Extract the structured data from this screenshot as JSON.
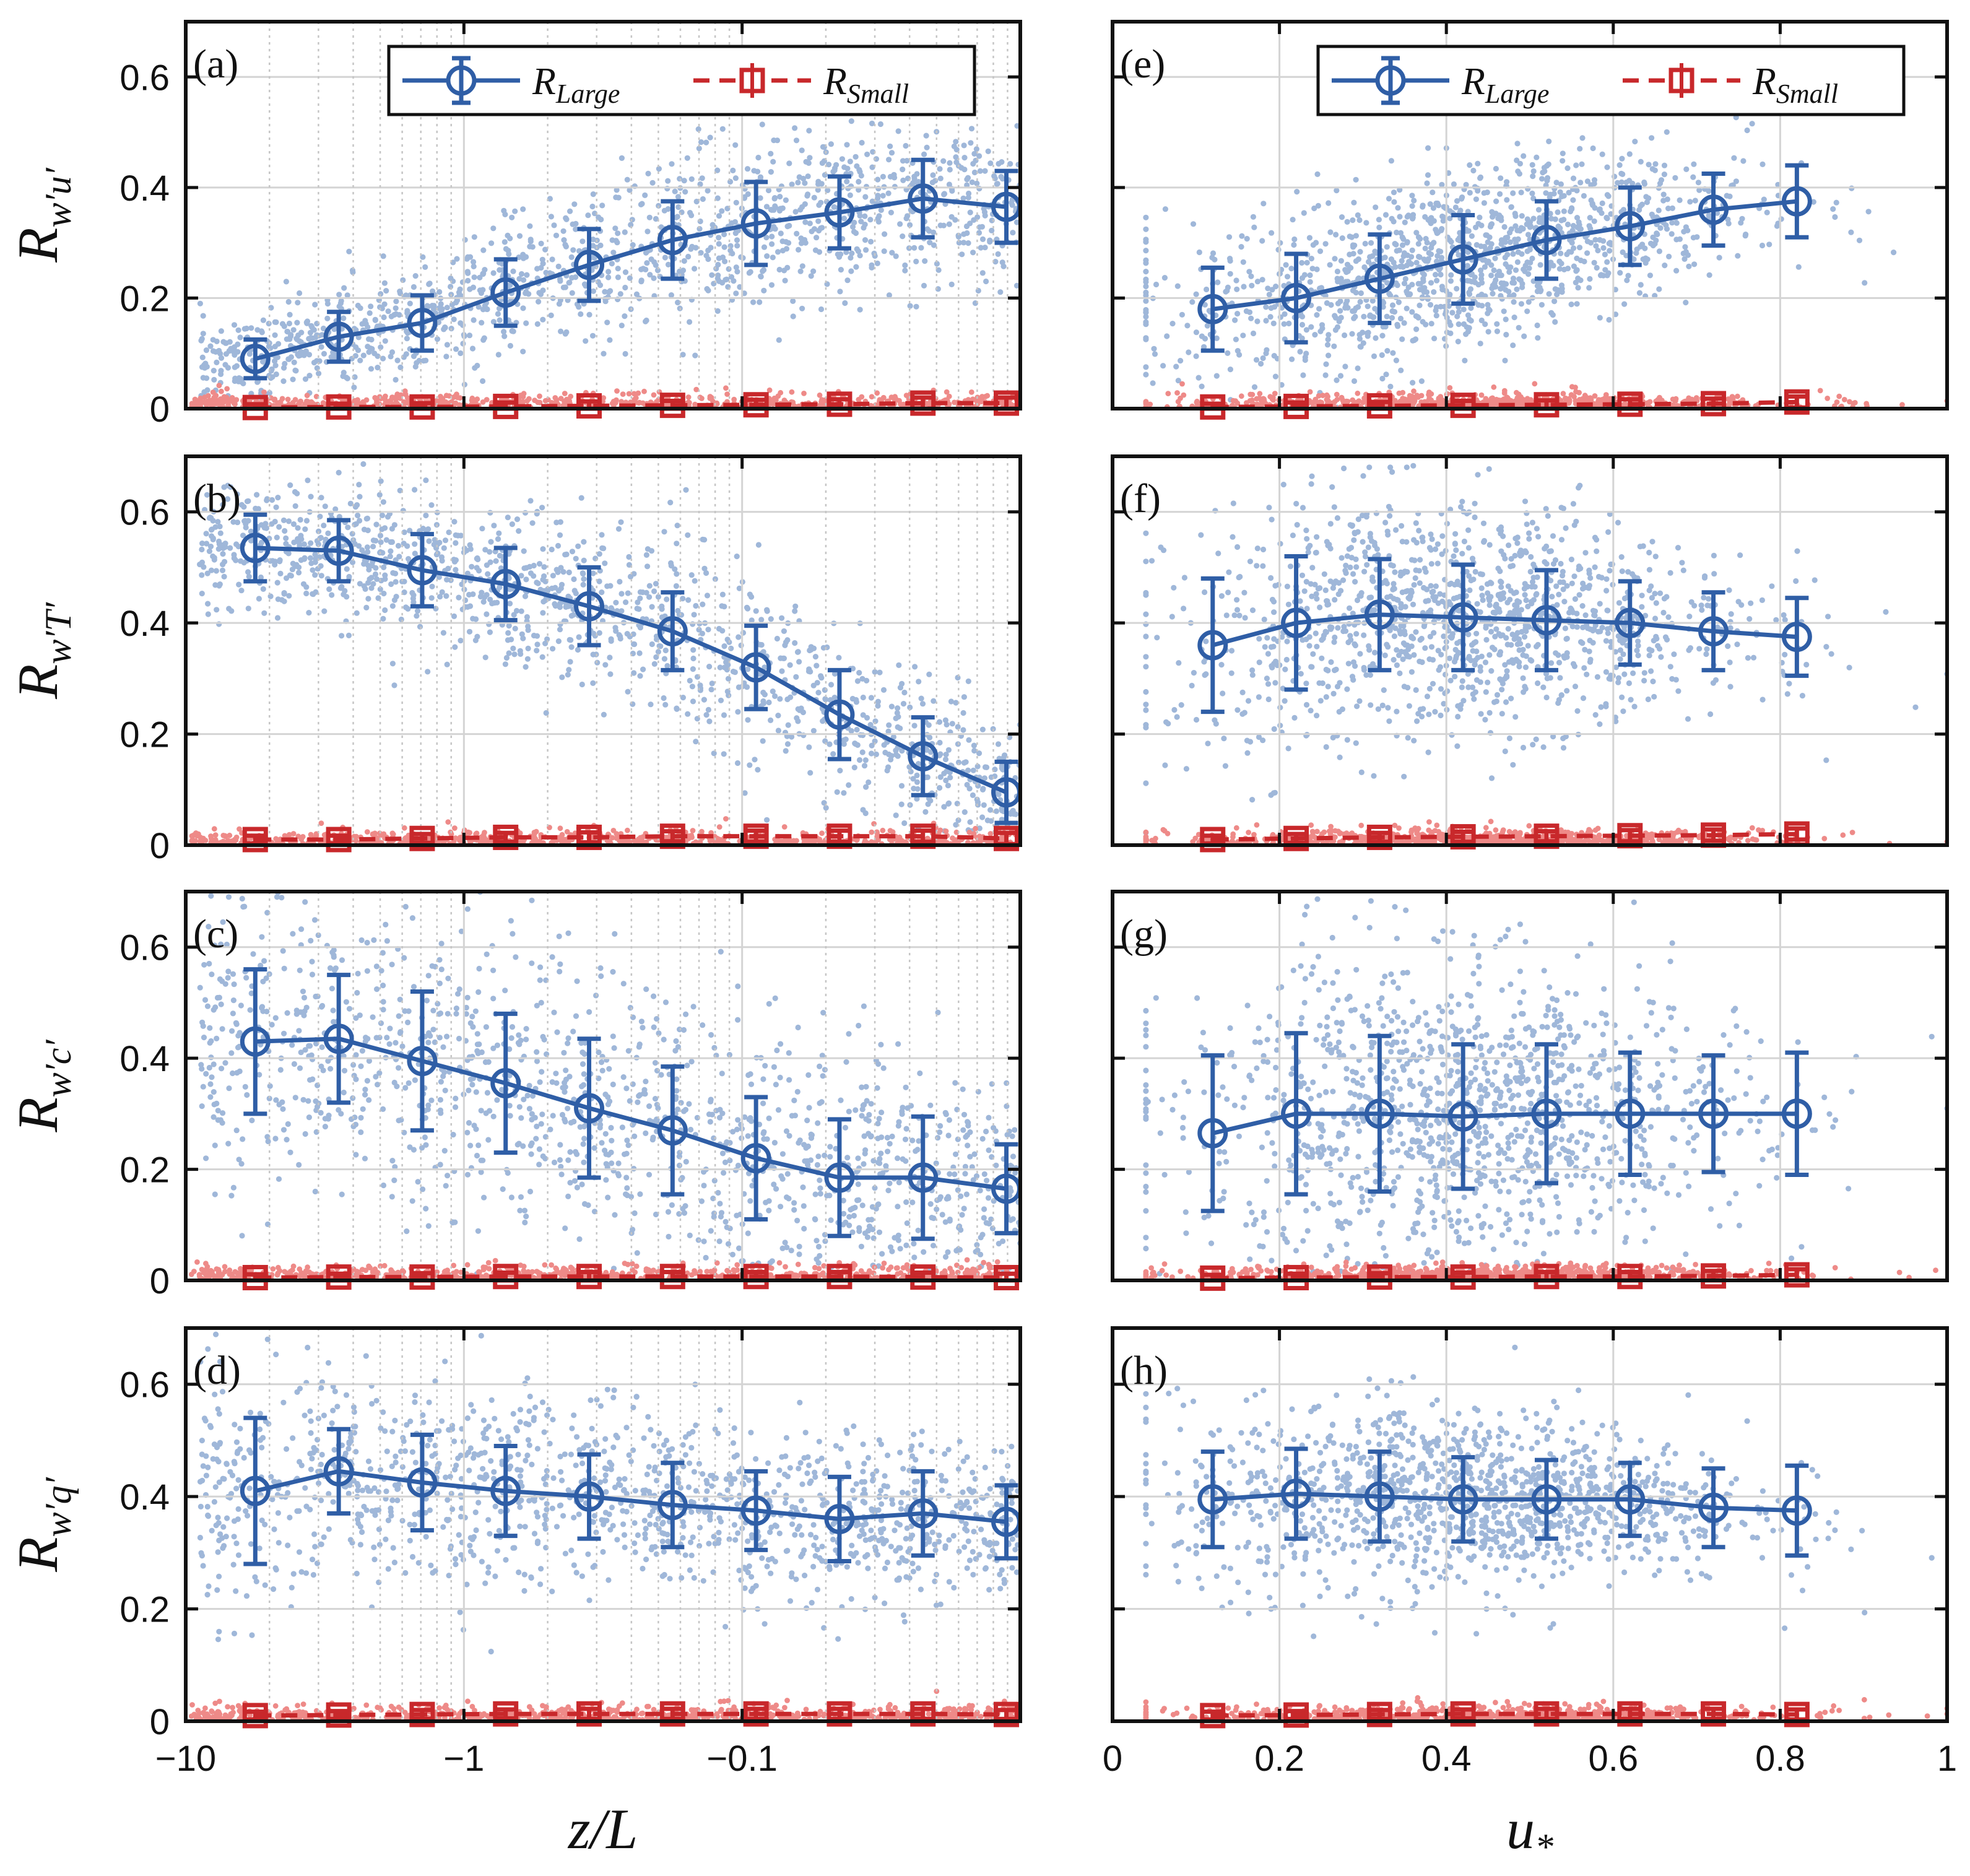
{
  "colors": {
    "large": "#2f5ea6",
    "small": "#c8282b",
    "large_scatter": "#9fb7d9",
    "small_scatter": "#ee8a88",
    "grid": "#d4d4d4",
    "axis": "#111111"
  },
  "legend": {
    "large_label": "R_Large",
    "small_label": "R_Small",
    "large_main": "R",
    "large_sub": "Large",
    "small_main": "R",
    "small_sub": "Small"
  },
  "x_axes": {
    "left": {
      "label": "z/L",
      "label_main": "z/L",
      "scale": "log-negative",
      "tick_labels": [
        "−10",
        "−1",
        "−0.1"
      ]
    },
    "right": {
      "label": "u*",
      "label_main": "u",
      "label_sub": "*",
      "scale": "linear",
      "range": [
        0,
        1
      ],
      "tick_labels": [
        "0",
        "0.2",
        "0.4",
        "0.6",
        "0.8",
        "1"
      ]
    }
  },
  "y_axis_tick_labels": [
    "0",
    "0.2",
    "0.4",
    "0.6"
  ],
  "chart_data": [
    {
      "type": "scatter",
      "panel": "(a)",
      "ylabel": "R_w'u'",
      "ylabel_sub": "w′u′",
      "xlabel": "z/L",
      "ylim": [
        0,
        0.7
      ],
      "legend": true,
      "series": [
        {
          "name": "R_Large",
          "x_decades": [
            -1.75,
            -1.45,
            -1.15,
            -0.85,
            -0.55,
            -0.25,
            0.05,
            0.35,
            0.65,
            0.95
          ],
          "values": [
            0.09,
            0.13,
            0.155,
            0.21,
            0.26,
            0.305,
            0.335,
            0.355,
            0.38,
            0.365
          ],
          "err": [
            0.035,
            0.045,
            0.05,
            0.06,
            0.065,
            0.07,
            0.075,
            0.065,
            0.07,
            0.065
          ]
        },
        {
          "name": "R_Small",
          "x_decades": [
            -1.75,
            -1.45,
            -1.15,
            -0.85,
            -0.55,
            -0.25,
            0.05,
            0.35,
            0.65,
            0.95
          ],
          "values": [
            0.002,
            0.003,
            0.003,
            0.004,
            0.005,
            0.006,
            0.007,
            0.008,
            0.01,
            0.01
          ],
          "err": [
            0.006,
            0.006,
            0.007,
            0.007,
            0.008,
            0.008,
            0.009,
            0.009,
            0.01,
            0.01
          ]
        }
      ]
    },
    {
      "type": "scatter",
      "panel": "(b)",
      "ylabel": "R_w'T'",
      "ylabel_sub": "w′T′",
      "xlabel": "z/L",
      "ylim": [
        0,
        0.7
      ],
      "legend": false,
      "series": [
        {
          "name": "R_Large",
          "x_decades": [
            -1.75,
            -1.45,
            -1.15,
            -0.85,
            -0.55,
            -0.25,
            0.05,
            0.35,
            0.65,
            0.95
          ],
          "values": [
            0.535,
            0.53,
            0.495,
            0.47,
            0.43,
            0.385,
            0.32,
            0.235,
            0.16,
            0.095
          ],
          "err": [
            0.06,
            0.055,
            0.065,
            0.065,
            0.07,
            0.07,
            0.075,
            0.08,
            0.07,
            0.055
          ]
        },
        {
          "name": "R_Small",
          "x_decades": [
            -1.75,
            -1.45,
            -1.15,
            -0.85,
            -0.55,
            -0.25,
            0.05,
            0.35,
            0.65,
            0.95
          ],
          "values": [
            0.01,
            0.01,
            0.012,
            0.014,
            0.014,
            0.016,
            0.016,
            0.016,
            0.016,
            0.012
          ],
          "err": [
            0.007,
            0.007,
            0.008,
            0.008,
            0.009,
            0.009,
            0.01,
            0.01,
            0.01,
            0.01
          ]
        }
      ]
    },
    {
      "type": "scatter",
      "panel": "(c)",
      "ylabel": "R_w'c'",
      "ylabel_sub": "w′c′",
      "xlabel": "z/L",
      "ylim": [
        0,
        0.7
      ],
      "legend": false,
      "series": [
        {
          "name": "R_Large",
          "x_decades": [
            -1.75,
            -1.45,
            -1.15,
            -0.85,
            -0.55,
            -0.25,
            0.05,
            0.35,
            0.65,
            0.95
          ],
          "values": [
            0.43,
            0.435,
            0.395,
            0.355,
            0.31,
            0.27,
            0.22,
            0.185,
            0.185,
            0.165
          ],
          "err": [
            0.13,
            0.115,
            0.125,
            0.125,
            0.125,
            0.115,
            0.11,
            0.105,
            0.11,
            0.08
          ]
        },
        {
          "name": "R_Small",
          "x_decades": [
            -1.75,
            -1.45,
            -1.15,
            -0.85,
            -0.55,
            -0.25,
            0.05,
            0.35,
            0.65,
            0.95
          ],
          "values": [
            0.005,
            0.006,
            0.006,
            0.007,
            0.007,
            0.007,
            0.007,
            0.007,
            0.006,
            0.005
          ],
          "err": [
            0.006,
            0.006,
            0.007,
            0.007,
            0.008,
            0.008,
            0.008,
            0.008,
            0.008,
            0.007
          ]
        }
      ]
    },
    {
      "type": "scatter",
      "panel": "(d)",
      "ylabel": "R_w'q'",
      "ylabel_sub": "w′q′",
      "xlabel": "z/L",
      "ylim": [
        0,
        0.7
      ],
      "legend": false,
      "series": [
        {
          "name": "R_Large",
          "x_decades": [
            -1.75,
            -1.45,
            -1.15,
            -0.85,
            -0.55,
            -0.25,
            0.05,
            0.35,
            0.65,
            0.95
          ],
          "values": [
            0.41,
            0.445,
            0.425,
            0.41,
            0.4,
            0.385,
            0.375,
            0.36,
            0.37,
            0.355
          ],
          "err": [
            0.13,
            0.075,
            0.085,
            0.08,
            0.075,
            0.075,
            0.07,
            0.075,
            0.075,
            0.065
          ]
        },
        {
          "name": "R_Small",
          "x_decades": [
            -1.75,
            -1.45,
            -1.15,
            -0.85,
            -0.55,
            -0.25,
            0.05,
            0.35,
            0.65,
            0.95
          ],
          "values": [
            0.01,
            0.011,
            0.012,
            0.013,
            0.013,
            0.013,
            0.013,
            0.013,
            0.013,
            0.012
          ],
          "err": [
            0.007,
            0.007,
            0.008,
            0.008,
            0.009,
            0.009,
            0.009,
            0.009,
            0.009,
            0.008
          ]
        }
      ]
    },
    {
      "type": "scatter",
      "panel": "(e)",
      "ylabel": "",
      "xlabel": "u*",
      "ylim": [
        0,
        0.7
      ],
      "legend": true,
      "series": [
        {
          "name": "R_Large",
          "x": [
            0.12,
            0.22,
            0.32,
            0.42,
            0.52,
            0.62,
            0.72,
            0.82
          ],
          "values": [
            0.18,
            0.2,
            0.235,
            0.27,
            0.305,
            0.33,
            0.36,
            0.375
          ],
          "err": [
            0.075,
            0.08,
            0.08,
            0.08,
            0.07,
            0.07,
            0.065,
            0.065
          ]
        },
        {
          "name": "R_Small",
          "x": [
            0.12,
            0.22,
            0.32,
            0.42,
            0.52,
            0.62,
            0.72,
            0.82
          ],
          "values": [
            0.003,
            0.004,
            0.005,
            0.006,
            0.007,
            0.008,
            0.009,
            0.012
          ],
          "err": [
            0.006,
            0.007,
            0.007,
            0.008,
            0.008,
            0.009,
            0.009,
            0.01
          ]
        }
      ]
    },
    {
      "type": "scatter",
      "panel": "(f)",
      "ylabel": "",
      "xlabel": "u*",
      "ylim": [
        0,
        0.7
      ],
      "legend": false,
      "series": [
        {
          "name": "R_Large",
          "x": [
            0.12,
            0.22,
            0.32,
            0.42,
            0.52,
            0.62,
            0.72,
            0.82
          ],
          "values": [
            0.36,
            0.4,
            0.415,
            0.41,
            0.405,
            0.4,
            0.385,
            0.375
          ],
          "err": [
            0.12,
            0.12,
            0.1,
            0.095,
            0.09,
            0.075,
            0.07,
            0.07
          ]
        },
        {
          "name": "R_Small",
          "x": [
            0.12,
            0.22,
            0.32,
            0.42,
            0.52,
            0.62,
            0.72,
            0.82
          ],
          "values": [
            0.01,
            0.012,
            0.014,
            0.015,
            0.016,
            0.017,
            0.018,
            0.02
          ],
          "err": [
            0.007,
            0.008,
            0.008,
            0.009,
            0.009,
            0.01,
            0.01,
            0.01
          ]
        }
      ]
    },
    {
      "type": "scatter",
      "panel": "(g)",
      "ylabel": "",
      "xlabel": "u*",
      "ylim": [
        0,
        0.7
      ],
      "legend": false,
      "series": [
        {
          "name": "R_Large",
          "x": [
            0.12,
            0.22,
            0.32,
            0.42,
            0.52,
            0.62,
            0.72,
            0.82
          ],
          "values": [
            0.265,
            0.3,
            0.3,
            0.295,
            0.3,
            0.3,
            0.3,
            0.3
          ],
          "err": [
            0.14,
            0.145,
            0.14,
            0.13,
            0.125,
            0.11,
            0.105,
            0.11
          ]
        },
        {
          "name": "R_Small",
          "x": [
            0.12,
            0.22,
            0.32,
            0.42,
            0.52,
            0.62,
            0.72,
            0.82
          ],
          "values": [
            0.004,
            0.005,
            0.006,
            0.006,
            0.007,
            0.007,
            0.008,
            0.01
          ],
          "err": [
            0.006,
            0.007,
            0.007,
            0.008,
            0.008,
            0.008,
            0.009,
            0.01
          ]
        }
      ]
    },
    {
      "type": "scatter",
      "panel": "(h)",
      "ylabel": "",
      "xlabel": "u*",
      "ylim": [
        0,
        0.7
      ],
      "legend": false,
      "series": [
        {
          "name": "R_Large",
          "x": [
            0.12,
            0.22,
            0.32,
            0.42,
            0.52,
            0.62,
            0.72,
            0.82
          ],
          "values": [
            0.395,
            0.405,
            0.4,
            0.395,
            0.395,
            0.395,
            0.38,
            0.375
          ],
          "err": [
            0.085,
            0.08,
            0.08,
            0.075,
            0.07,
            0.065,
            0.07,
            0.08
          ]
        },
        {
          "name": "R_Small",
          "x": [
            0.12,
            0.22,
            0.32,
            0.42,
            0.52,
            0.62,
            0.72,
            0.82
          ],
          "values": [
            0.01,
            0.011,
            0.012,
            0.013,
            0.013,
            0.013,
            0.013,
            0.012
          ],
          "err": [
            0.007,
            0.007,
            0.008,
            0.008,
            0.009,
            0.009,
            0.009,
            0.009
          ]
        }
      ]
    }
  ]
}
